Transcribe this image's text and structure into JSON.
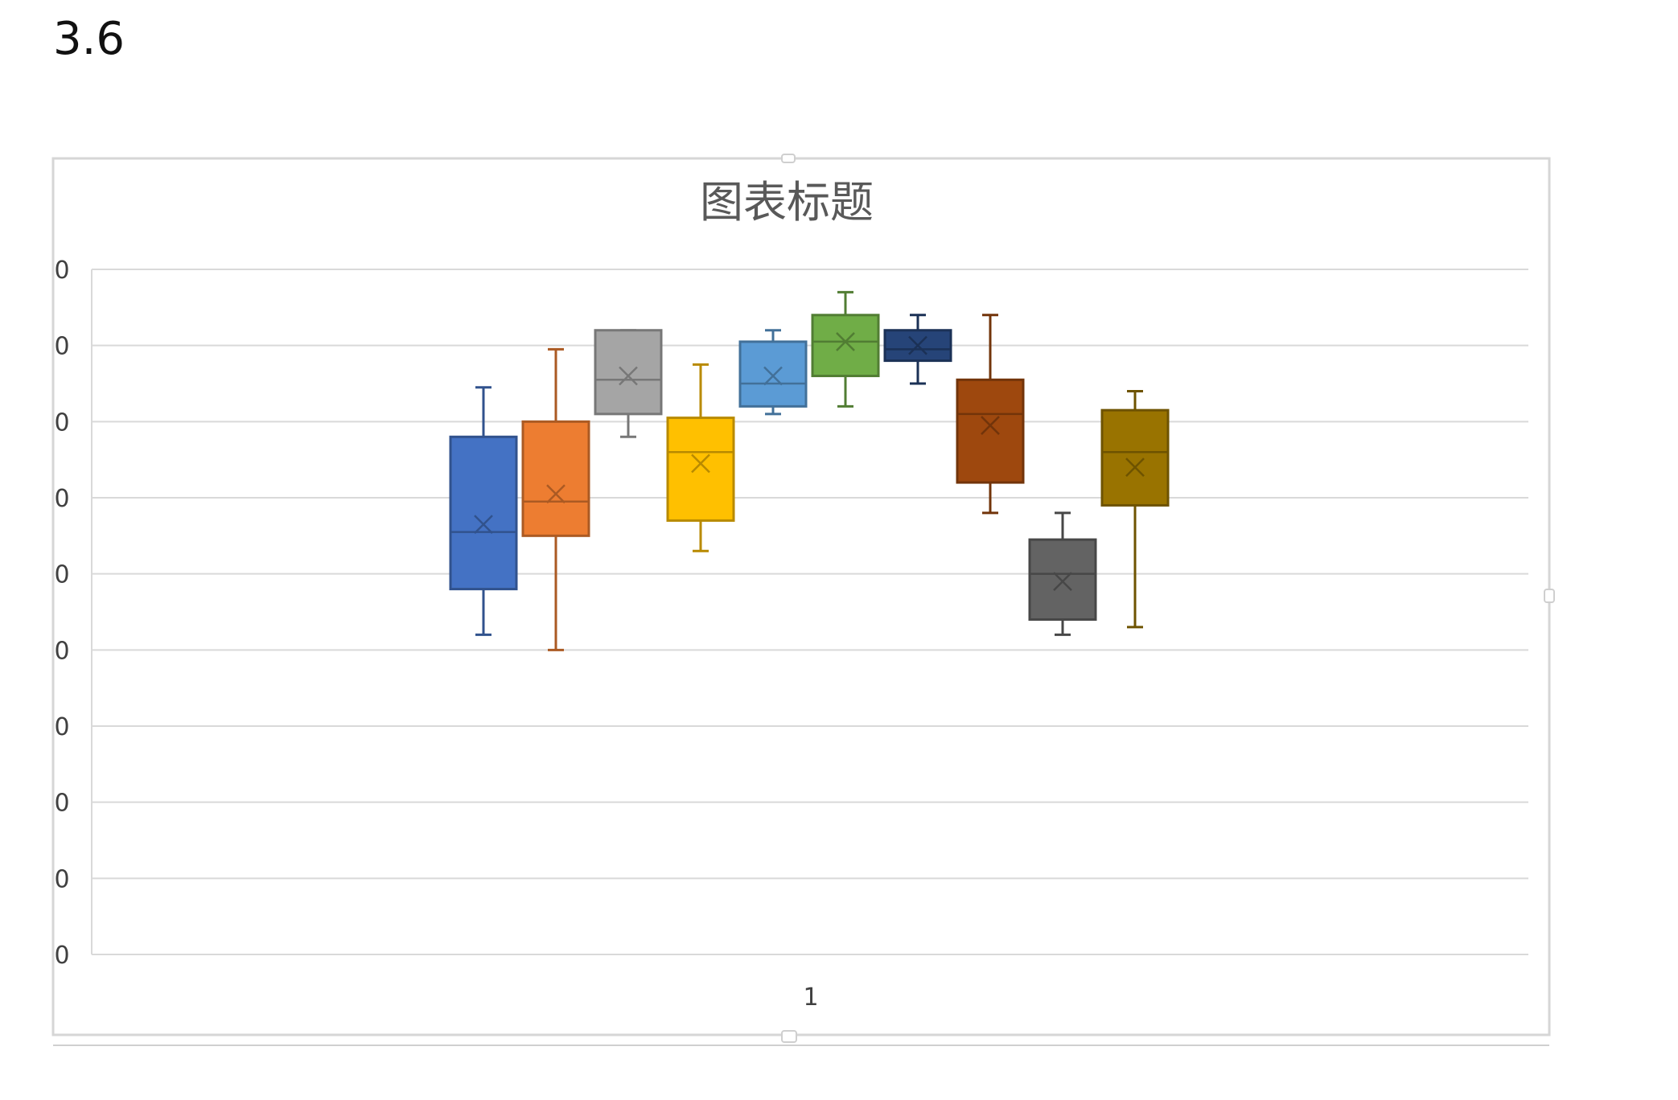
{
  "heading": "3.6",
  "chart_data": {
    "type": "box",
    "title": "图表标题",
    "categories": [
      "1"
    ],
    "xlabel": "",
    "ylabel": "",
    "ylim": [
      0,
      9
    ],
    "y_tick_labels": [
      "0",
      "0",
      "0",
      "0",
      "0",
      "0",
      "0",
      "0",
      "0",
      "0"
    ],
    "gridlines": true,
    "legend": "none",
    "series": [
      {
        "color": "#4472C4",
        "min": 4.2,
        "q1": 4.8,
        "median": 5.55,
        "q3": 6.8,
        "max": 7.45,
        "mean": 5.65
      },
      {
        "color": "#ED7D31",
        "min": 4.0,
        "q1": 5.5,
        "median": 5.95,
        "q3": 7.0,
        "max": 7.95,
        "mean": 6.05
      },
      {
        "color": "#A5A5A5",
        "min": 6.8,
        "q1": 7.1,
        "median": 7.55,
        "q3": 8.2,
        "max": 8.2,
        "mean": 7.6
      },
      {
        "color": "#FFC000",
        "min": 5.3,
        "q1": 5.7,
        "median": 6.6,
        "q3": 7.05,
        "max": 7.75,
        "mean": 6.45
      },
      {
        "color": "#5B9BD5",
        "min": 7.1,
        "q1": 7.2,
        "median": 7.5,
        "q3": 8.05,
        "max": 8.2,
        "mean": 7.6
      },
      {
        "color": "#70AD47",
        "min": 7.2,
        "q1": 7.6,
        "median": 8.05,
        "q3": 8.4,
        "max": 8.7,
        "mean": 8.05
      },
      {
        "color": "#264478",
        "min": 7.5,
        "q1": 7.8,
        "median": 7.95,
        "q3": 8.2,
        "max": 8.4,
        "mean": 8.0
      },
      {
        "color": "#9E480E",
        "min": 5.8,
        "q1": 6.2,
        "median": 7.1,
        "q3": 7.55,
        "max": 8.4,
        "mean": 6.95
      },
      {
        "color": "#636363",
        "min": 4.2,
        "q1": 4.4,
        "median": 5.0,
        "q3": 5.45,
        "max": 5.8,
        "mean": 4.9
      },
      {
        "color": "#997300",
        "min": 4.3,
        "q1": 5.9,
        "median": 6.6,
        "q3": 7.15,
        "max": 7.4,
        "mean": 6.4
      }
    ]
  }
}
